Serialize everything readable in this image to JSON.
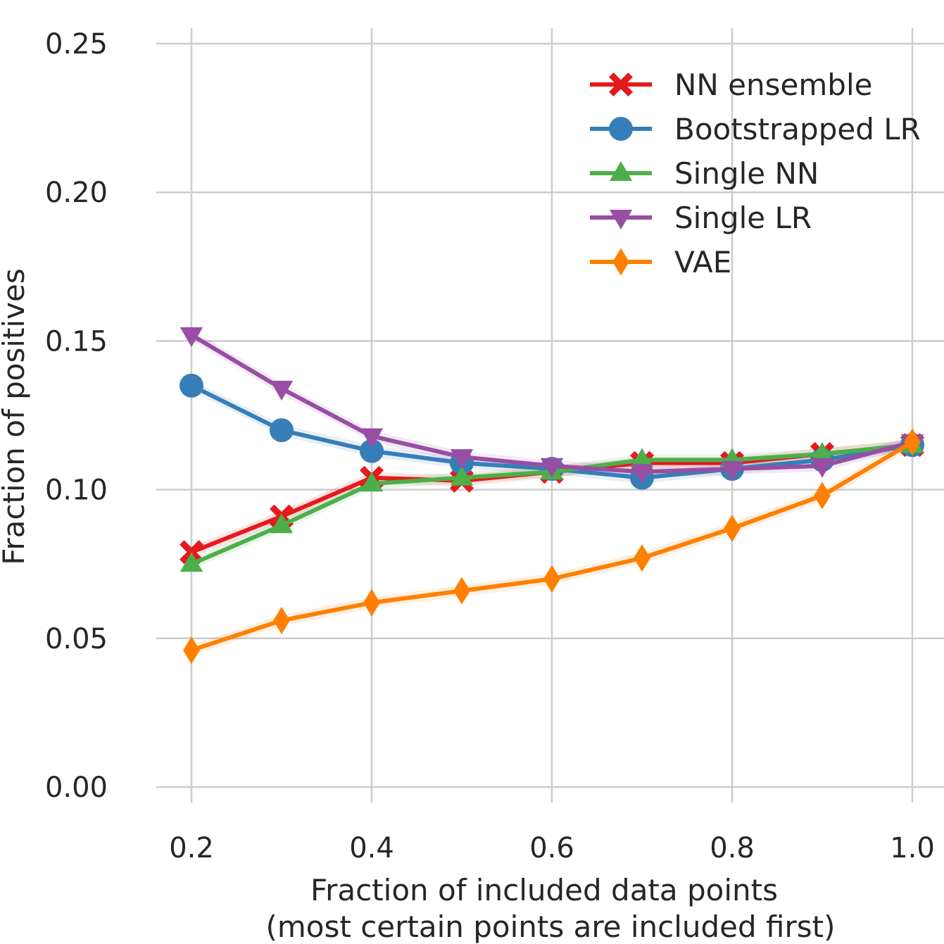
{
  "chart_data": {
    "type": "line",
    "title": "",
    "xlabel": "Fraction of included data points",
    "xlabel_line2": "(most certain points are included first)",
    "ylabel": "Fraction of positives",
    "xlim": [
      0.16,
      1.18
    ],
    "ylim": [
      0.0,
      0.25
    ],
    "xticks": [
      0.2,
      0.4,
      0.6,
      0.8,
      1.0
    ],
    "xtick_labels": [
      "0.2",
      "0.4",
      "0.6",
      "0.8",
      "1.0"
    ],
    "yticks": [
      0.0,
      0.05,
      0.1,
      0.15,
      0.2,
      0.25
    ],
    "ytick_labels": [
      "0.00",
      "0.05",
      "0.10",
      "0.15",
      "0.20",
      "0.25"
    ],
    "grid": true,
    "legend_position": "top-right",
    "x": [
      0.2,
      0.3,
      0.4,
      0.5,
      0.6,
      0.7,
      0.8,
      0.9,
      1.0
    ],
    "series": [
      {
        "name": "NN ensemble",
        "color": "#e41a1c",
        "marker": "x",
        "values": [
          0.079,
          0.091,
          0.104,
          0.103,
          0.106,
          0.109,
          0.109,
          0.112,
          0.115
        ]
      },
      {
        "name": "Bootstrapped LR",
        "color": "#377eb8",
        "marker": "circle",
        "values": [
          0.135,
          0.12,
          0.113,
          0.109,
          0.107,
          0.104,
          0.107,
          0.11,
          0.115
        ]
      },
      {
        "name": "Single NN",
        "color": "#4daf4a",
        "marker": "triangle-up",
        "values": [
          0.075,
          0.088,
          0.102,
          0.104,
          0.106,
          0.11,
          0.11,
          0.112,
          0.115
        ]
      },
      {
        "name": "Single LR",
        "color": "#984ea3",
        "marker": "triangle-down",
        "values": [
          0.152,
          0.134,
          0.118,
          0.111,
          0.108,
          0.106,
          0.107,
          0.108,
          0.116
        ]
      },
      {
        "name": "VAE",
        "color": "#ff7f00",
        "marker": "diamond",
        "values": [
          0.046,
          0.056,
          0.062,
          0.066,
          0.07,
          0.077,
          0.087,
          0.098,
          0.116
        ]
      }
    ]
  }
}
